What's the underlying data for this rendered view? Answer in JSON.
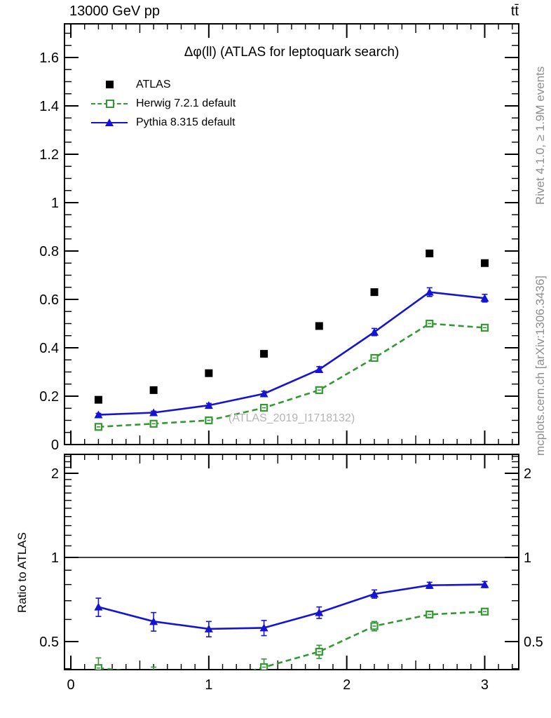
{
  "header": {
    "beam": "13000 GeV pp",
    "process": "tt̄"
  },
  "watermark": "(ATLAS_2019_I1718132)",
  "side_labels": {
    "top_right": "Rivet 4.1.0, ≥ 1.9M events",
    "bottom_right": "mcplots.cern.ch [arXiv:1306.3436]"
  },
  "colors": {
    "atlas": "#000000",
    "herwig": "#339933",
    "pythia": "#1414d2",
    "annotation_gray": "#8e8e8e",
    "watermark_gray": "#b4b4b4"
  },
  "chart_data": [
    {
      "type": "scatter",
      "panel": "main",
      "title": "Δφ(ll) (ATLAS for leptoquark search)",
      "x": [
        0.2,
        0.6,
        1.0,
        1.4,
        1.8,
        2.2,
        2.6,
        3.0
      ],
      "xlim": [
        -0.05,
        3.25
      ],
      "ylim": [
        0,
        1.739
      ],
      "yticks": {
        "values": [
          0,
          0.2,
          0.4,
          0.6,
          0.8,
          1.0,
          1.2,
          1.4,
          1.6
        ],
        "labels": [
          "0",
          "0.2",
          "0.4",
          "0.6",
          "0.8",
          "1",
          "1.2",
          "1.4",
          "1.6"
        ]
      },
      "xticks": {
        "values": [
          0,
          1,
          2,
          3
        ],
        "labels": [
          "0",
          "1",
          "2",
          "3"
        ]
      },
      "series": [
        {
          "name": "ATLAS",
          "marker": "filled-square",
          "line": null,
          "color": "#000000",
          "values": [
            0.185,
            0.225,
            0.295,
            0.375,
            0.49,
            0.63,
            0.79,
            0.75
          ]
        },
        {
          "name": "Herwig 7.2.1 default",
          "marker": "open-square",
          "line": "dashed",
          "color": "#339933",
          "values": [
            0.073,
            0.086,
            0.1,
            0.152,
            0.225,
            0.358,
            0.5,
            0.483
          ],
          "errors": [
            0.004,
            0.004,
            0.005,
            0.007,
            0.009,
            0.011,
            0.012,
            0.012
          ]
        },
        {
          "name": "Pythia 8.315 default",
          "marker": "filled-triangle",
          "line": "solid",
          "color": "#1414d2",
          "values": [
            0.123,
            0.132,
            0.162,
            0.21,
            0.31,
            0.465,
            0.63,
            0.605
          ],
          "errors": [
            0.006,
            0.006,
            0.008,
            0.01,
            0.012,
            0.015,
            0.018,
            0.016
          ]
        }
      ]
    },
    {
      "type": "ratio",
      "panel": "ratio",
      "ylabel": "Ratio to ATLAS",
      "yscale": "log",
      "ylim": [
        0.4,
        2.34
      ],
      "x": [
        0.2,
        0.6,
        1.0,
        1.4,
        1.8,
        2.2,
        2.6,
        3.0
      ],
      "yticks": {
        "values": [
          0.5,
          1,
          2
        ],
        "labels": [
          "0.5",
          "1",
          "2"
        ]
      },
      "reference_line": 1,
      "series": [
        {
          "name": "Herwig 7.2.1 default",
          "marker": "open-square",
          "line": "dashed",
          "color": "#339933",
          "values": [
            0.402,
            0.385,
            0.356,
            0.405,
            0.46,
            0.568,
            0.625,
            0.64
          ],
          "errors": [
            0.035,
            0.02,
            0.02,
            0.028,
            0.025,
            0.022,
            0.015,
            0.015
          ]
        },
        {
          "name": "Pythia 8.315 default",
          "marker": "filled-triangle",
          "line": "solid",
          "color": "#1414d2",
          "values": [
            0.665,
            0.59,
            0.555,
            0.56,
            0.635,
            0.74,
            0.795,
            0.8
          ],
          "errors": [
            0.05,
            0.045,
            0.035,
            0.035,
            0.03,
            0.025,
            0.02,
            0.02
          ]
        }
      ]
    }
  ]
}
